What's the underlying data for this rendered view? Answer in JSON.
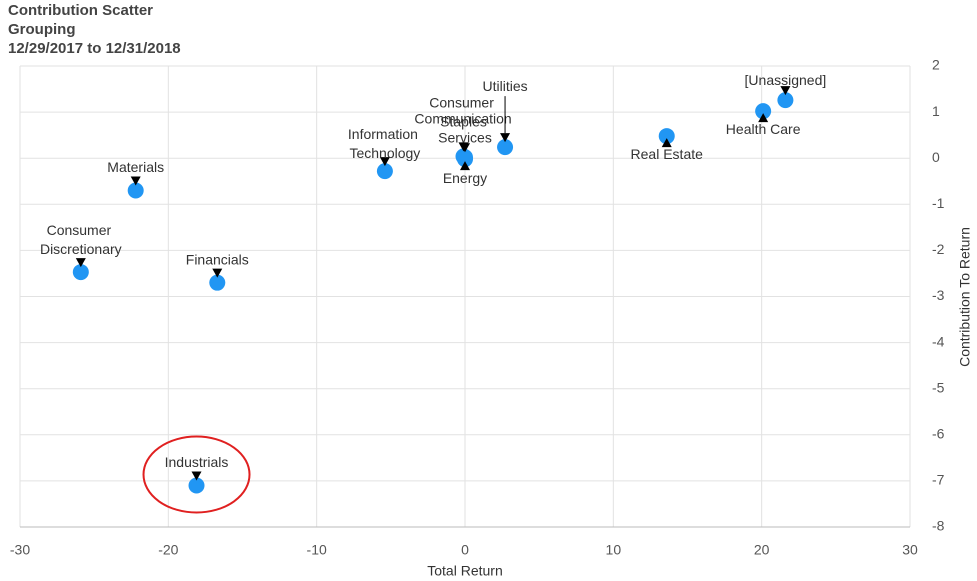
{
  "chart_data": {
    "type": "scatter",
    "title": [
      "Contribution Scatter",
      "Grouping",
      "12/29/2017 to 12/31/2018"
    ],
    "xlabel": "Total Return",
    "ylabel": "Contribution To Return",
    "labels": [
      "Materials",
      "Consumer Discretionary",
      "Financials",
      "Industrials",
      "Information Technology",
      "Consumer Staples",
      "Communication Services",
      "Energy",
      "Utilities",
      "Real Estate",
      "Health Care",
      "[Unassigned]"
    ],
    "x": [
      -22.2,
      -25.9,
      -16.7,
      -18.1,
      -5.4,
      -0.1,
      0.0,
      0.0,
      2.7,
      13.6,
      20.1,
      21.6
    ],
    "y": [
      -0.7,
      -2.47,
      -2.7,
      -7.1,
      -0.28,
      0.04,
      0.02,
      -0.02,
      0.24,
      0.48,
      1.02,
      1.26
    ],
    "color": "#2196f3",
    "xlim": [
      -30,
      30
    ],
    "xticks": [
      -30,
      -20,
      -10,
      0,
      10,
      20,
      30
    ],
    "ylim": [
      -8,
      2
    ],
    "yticks": [
      -8,
      -7,
      -6,
      -5,
      -4,
      -3,
      -2,
      -1,
      0,
      1,
      2
    ],
    "grid": true
  }
}
